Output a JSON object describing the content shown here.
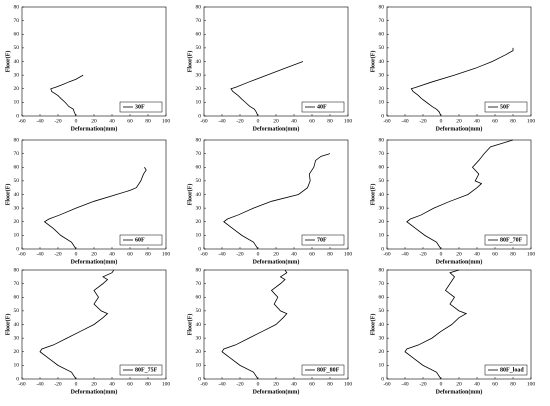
{
  "chart_data": [
    {
      "type": "line",
      "xlabel": "Deformation(mm)",
      "ylabel": "Floor(F)",
      "xlim": [
        -60,
        100
      ],
      "ylim": [
        0,
        80
      ],
      "xticks": [
        -60,
        -40,
        -20,
        0,
        20,
        40,
        60,
        80,
        100
      ],
      "yticks": [
        0,
        10,
        20,
        30,
        40,
        50,
        60,
        70,
        80
      ],
      "legend": "lower right",
      "series": [
        {
          "name": "30F",
          "color": "#000000",
          "x": [
            0,
            -2,
            -3,
            -8,
            -12,
            -17,
            -20,
            -27,
            -28,
            -23,
            -15,
            -8,
            0,
            8
          ],
          "values": [
            0,
            3,
            5,
            7,
            10,
            13,
            15,
            18,
            20,
            21,
            23,
            25,
            27,
            30
          ]
        }
      ]
    },
    {
      "type": "line",
      "xlabel": "Deformation(mm)",
      "ylabel": "Floor(F)",
      "xlim": [
        -60,
        100
      ],
      "ylim": [
        0,
        80
      ],
      "xticks": [
        -60,
        -40,
        -20,
        0,
        20,
        40,
        60,
        80,
        100
      ],
      "yticks": [
        0,
        10,
        20,
        30,
        40,
        50,
        60,
        70,
        80
      ],
      "legend": "lower right",
      "series": [
        {
          "name": "40F",
          "color": "#000000",
          "x": [
            0,
            -2,
            -4,
            -9,
            -14,
            -19,
            -22,
            -28,
            -30,
            -25,
            -10,
            10,
            30,
            50
          ],
          "values": [
            0,
            3,
            5,
            7,
            10,
            13,
            15,
            18,
            20,
            21,
            25,
            30,
            35,
            40
          ]
        }
      ]
    },
    {
      "type": "line",
      "xlabel": "Deformation(mm)",
      "ylabel": "Floor(F)",
      "xlim": [
        -60,
        100
      ],
      "ylim": [
        0,
        80
      ],
      "xticks": [
        -60,
        -40,
        -20,
        0,
        20,
        40,
        60,
        80,
        100
      ],
      "yticks": [
        0,
        10,
        20,
        30,
        40,
        50,
        60,
        70,
        80
      ],
      "legend": "lower right",
      "series": [
        {
          "name": "50F",
          "color": "#000000",
          "x": [
            0,
            -2,
            -5,
            -10,
            -16,
            -22,
            -25,
            -31,
            -33,
            -28,
            -10,
            15,
            38,
            57,
            72,
            80,
            80
          ],
          "values": [
            0,
            3,
            5,
            7,
            10,
            13,
            15,
            18,
            20,
            21,
            25,
            30,
            35,
            40,
            45,
            48,
            50
          ]
        }
      ]
    },
    {
      "type": "line",
      "xlabel": "Deformation(mm)",
      "ylabel": "Floor(F)",
      "xlim": [
        -60,
        100
      ],
      "ylim": [
        0,
        80
      ],
      "xticks": [
        -60,
        -40,
        -20,
        0,
        20,
        40,
        60,
        80,
        100
      ],
      "yticks": [
        0,
        10,
        20,
        30,
        40,
        50,
        60,
        70,
        80
      ],
      "legend": "lower right",
      "series": [
        {
          "name": "60F",
          "color": "#000000",
          "x": [
            0,
            -5,
            -17,
            -25,
            -35,
            -30,
            -18,
            0,
            20,
            45,
            60,
            67,
            72,
            75,
            78,
            76
          ],
          "values": [
            0,
            5,
            10,
            15,
            20,
            22,
            25,
            30,
            35,
            40,
            43,
            45,
            50,
            55,
            58,
            60
          ]
        }
      ]
    },
    {
      "type": "line",
      "xlabel": "Deformation(mm)",
      "ylabel": "Floor(F)",
      "xlim": [
        -60,
        100
      ],
      "ylim": [
        0,
        80
      ],
      "xticks": [
        -60,
        -40,
        -20,
        0,
        20,
        40,
        60,
        80,
        100
      ],
      "yticks": [
        0,
        10,
        20,
        30,
        40,
        50,
        60,
        70,
        80
      ],
      "legend": "lower right",
      "series": [
        {
          "name": "70F",
          "color": "#000000",
          "x": [
            0,
            -5,
            -18,
            -28,
            -38,
            -34,
            -22,
            -5,
            15,
            45,
            55,
            58,
            57,
            62,
            64,
            70,
            80
          ],
          "values": [
            0,
            5,
            10,
            15,
            20,
            22,
            25,
            30,
            35,
            40,
            45,
            50,
            55,
            60,
            65,
            68,
            70
          ]
        }
      ]
    },
    {
      "type": "line",
      "xlabel": "Deformation(mm)",
      "ylabel": "Floor(F)",
      "xlim": [
        -60,
        100
      ],
      "ylim": [
        0,
        80
      ],
      "xticks": [
        -60,
        -40,
        -20,
        0,
        20,
        40,
        60,
        80,
        100
      ],
      "yticks": [
        0,
        10,
        20,
        30,
        40,
        50,
        60,
        70,
        80
      ],
      "legend": "lower right",
      "series": [
        {
          "name": "80F_70F",
          "color": "#000000",
          "x": [
            0,
            -5,
            -18,
            -28,
            -38,
            -34,
            -22,
            -8,
            10,
            30,
            40,
            45,
            38,
            42,
            35,
            42,
            48,
            55,
            70,
            80
          ],
          "values": [
            0,
            5,
            10,
            15,
            20,
            22,
            25,
            30,
            35,
            40,
            45,
            48,
            50,
            55,
            60,
            65,
            70,
            75,
            78,
            80
          ]
        }
      ]
    },
    {
      "type": "line",
      "xlabel": "Deformation(mm)",
      "ylabel": "Floor(F)",
      "xlim": [
        -60,
        100
      ],
      "ylim": [
        0,
        80
      ],
      "xticks": [
        -60,
        -40,
        -20,
        0,
        20,
        40,
        60,
        80,
        100
      ],
      "yticks": [
        0,
        10,
        20,
        30,
        40,
        50,
        60,
        70,
        80
      ],
      "legend": "lower right",
      "series": [
        {
          "name": "80F_75F",
          "color": "#000000",
          "x": [
            0,
            -5,
            -20,
            -30,
            -40,
            -38,
            -25,
            -10,
            5,
            20,
            30,
            35,
            28,
            20,
            25,
            20,
            30,
            35,
            30,
            40,
            42
          ],
          "values": [
            0,
            5,
            10,
            15,
            20,
            22,
            25,
            30,
            35,
            40,
            45,
            48,
            50,
            55,
            60,
            65,
            70,
            73,
            75,
            78,
            80
          ]
        }
      ]
    },
    {
      "type": "line",
      "xlabel": "Deformation(mm)",
      "ylabel": "Floor(F)",
      "xlim": [
        -60,
        100
      ],
      "ylim": [
        0,
        80
      ],
      "xticks": [
        -60,
        -40,
        -20,
        0,
        20,
        40,
        60,
        80,
        100
      ],
      "yticks": [
        0,
        10,
        20,
        30,
        40,
        50,
        60,
        70,
        80
      ],
      "legend": "lower right",
      "series": [
        {
          "name": "80F_80F",
          "color": "#000000",
          "x": [
            0,
            -5,
            -20,
            -30,
            -40,
            -38,
            -25,
            -10,
            5,
            20,
            28,
            32,
            25,
            18,
            22,
            15,
            25,
            30,
            25,
            32,
            30
          ],
          "values": [
            0,
            5,
            10,
            15,
            20,
            22,
            25,
            30,
            35,
            40,
            45,
            48,
            50,
            55,
            60,
            65,
            70,
            73,
            75,
            78,
            80
          ]
        }
      ]
    },
    {
      "type": "line",
      "xlabel": "Deformation(mm)",
      "ylabel": "Floor(F)",
      "xlim": [
        -60,
        100
      ],
      "ylim": [
        0,
        80
      ],
      "xticks": [
        -60,
        -40,
        -20,
        0,
        20,
        40,
        60,
        80,
        100
      ],
      "yticks": [
        0,
        10,
        20,
        30,
        40,
        50,
        60,
        70,
        80
      ],
      "legend": "lower right",
      "series": [
        {
          "name": "80F_load",
          "color": "#000000",
          "x": [
            0,
            -5,
            -20,
            -30,
            -40,
            -38,
            -25,
            -10,
            0,
            12,
            20,
            28,
            20,
            10,
            15,
            5,
            10,
            15,
            10,
            20
          ],
          "values": [
            0,
            5,
            10,
            15,
            20,
            22,
            25,
            30,
            35,
            40,
            45,
            48,
            50,
            55,
            60,
            65,
            70,
            75,
            78,
            80
          ]
        }
      ]
    }
  ]
}
